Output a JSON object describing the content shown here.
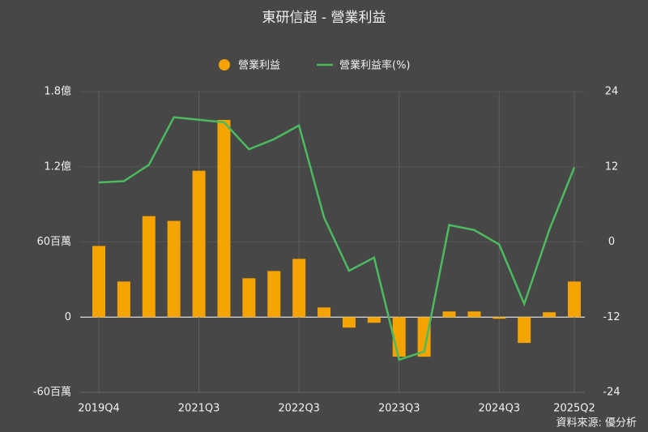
{
  "chart_data": {
    "type": "bar-line",
    "title": "東研信超 - 營業利益",
    "source": "資料來源: 優分析",
    "categories": [
      "2019Q4",
      null,
      null,
      null,
      "2021Q3",
      null,
      null,
      null,
      "2022Q3",
      null,
      null,
      null,
      "2023Q3",
      null,
      null,
      null,
      "2024Q3",
      null,
      null,
      "2025Q2"
    ],
    "series": [
      {
        "name": "營業利益",
        "color": "#f5a300",
        "kind": "bar",
        "values": [
          56.8,
          28.4,
          80.6,
          76.8,
          116.8,
          157.4,
          31,
          36.8,
          46.5,
          7.7,
          -8.4,
          -4.5,
          -31.6,
          -31.6,
          4.5,
          4.5,
          -1.3,
          -20.6,
          3.9,
          28.4
        ]
      },
      {
        "name": "營業利益率(%)",
        "color": "#4cbb5f",
        "kind": "line",
        "axis": "y2",
        "values": [
          9.5,
          9.7,
          12.3,
          19.9,
          19.5,
          19.1,
          14.8,
          16.4,
          18.6,
          3.9,
          -4.6,
          -2.5,
          -18.8,
          -17.5,
          2.7,
          1.9,
          -0.4,
          -9.9,
          1.9,
          11.9
        ]
      }
    ],
    "ylim": [
      -60,
      180
    ],
    "yticks": [
      {
        "value": -60,
        "label": "-60百萬"
      },
      0,
      {
        "value": 60,
        "label": "60百萬"
      },
      {
        "value": 120,
        "label": "1.2億"
      },
      {
        "value": 180,
        "label": "1.8億"
      }
    ],
    "y2lim": [
      -24,
      24
    ],
    "y2ticks": [
      -24,
      -12,
      0,
      12,
      24
    ],
    "grid": true,
    "legend": "top"
  }
}
